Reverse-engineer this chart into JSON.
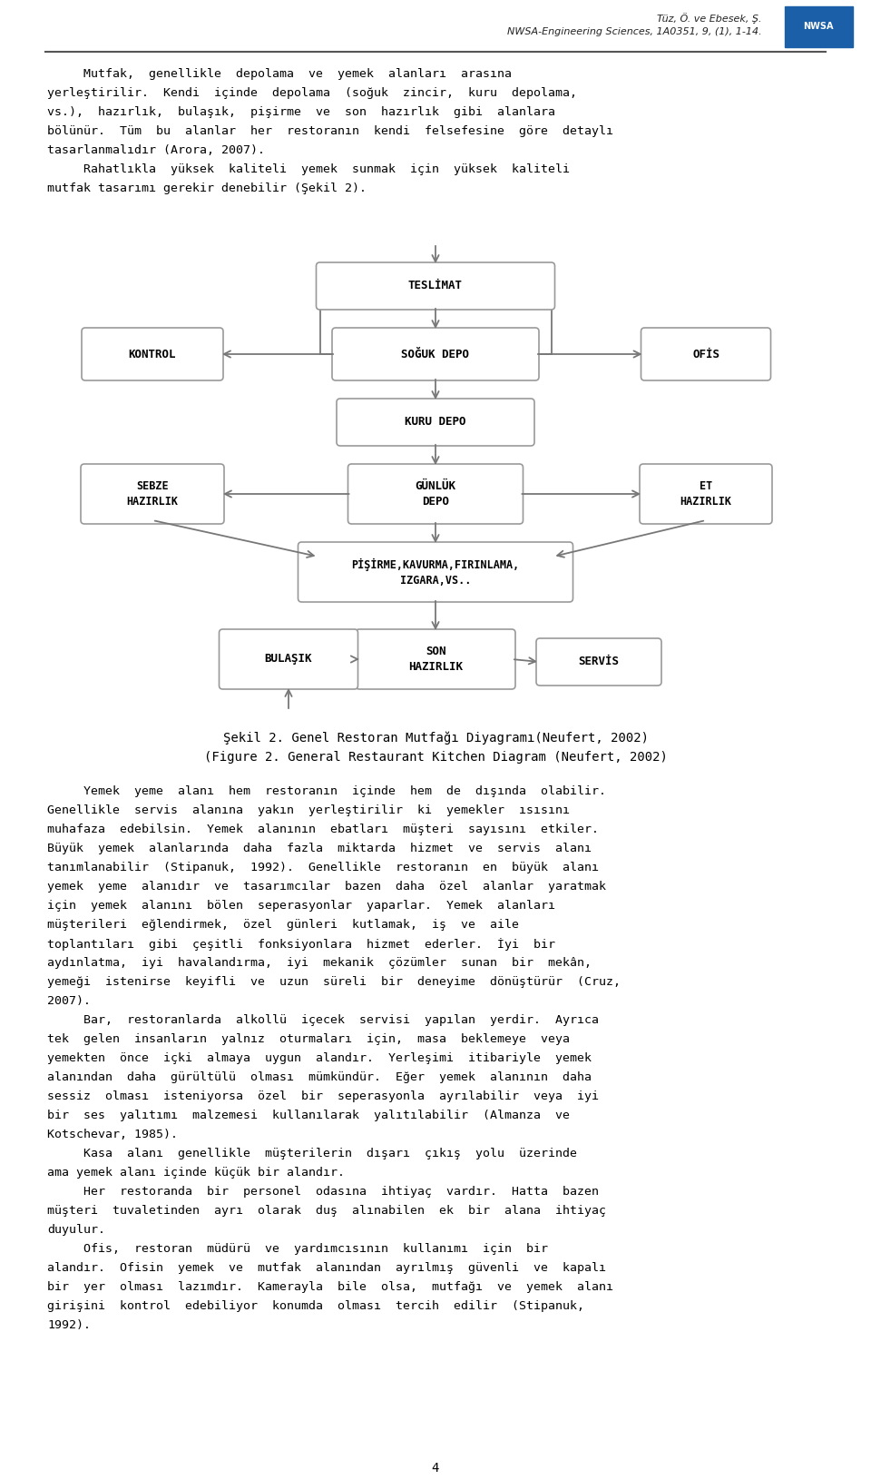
{
  "page_width": 9.6,
  "page_height": 16.3,
  "bg_color": "#ffffff",
  "header_line1": "Tüz, Ö. ve Ebesek, Ş.",
  "header_line2": "NWSA-Engineering Sciences, 1A0351, 9, (1), 1-14.",
  "body_text": [
    "     Mutfak,  genellikle  depolama  ve  yemek  alanları  arasına",
    "yerleştirilir.  Kendi  içinde  depolama  (soğuk  zincir,  kuru  depolama,",
    "vs.),  hazırlık,  bulaşık,  pişirme  ve  son  hazırlık  gibi  alanlara",
    "bölünür.  Tüm  bu  alanlar  her  restoranın  kendi  felsefesine  göre  detaylı",
    "tasarlanmalıdır (Arora, 2007).",
    "     Rahatlıkla  yüksek  kaliteli  yemek  sunmak  için  yüksek  kaliteli",
    "mutfak tasarımı gerekir denebilir (Şekil 2)."
  ],
  "caption_line1": "Şekil 2. Genel Restoran Mutfağı Diyagramı(Neufert, 2002)",
  "caption_line2": "(Figure 2. General Restaurant Kitchen Diagram (Neufert, 2002)",
  "body_text2": [
    "     Yemek  yeme  alanı  hem  restoranın  içinde  hem  de  dışında  olabilir.",
    "Genellikle  servis  alanına  yakın  yerleştirilir  ki  yemekler  ısısını",
    "muhafaza  edebilsin.  Yemek  alanının  ebatları  müşteri  sayısını  etkiler.",
    "Büyük  yemek  alanlarında  daha  fazla  miktarda  hizmet  ve  servis  alanı",
    "tanımlanabilir  (Stipanuk,  1992).  Genellikle  restoranın  en  büyük  alanı",
    "yemek  yeme  alanıdır  ve  tasarımcılar  bazen  daha  özel  alanlar  yaratmak",
    "için  yemek  alanını  bölen  seperasyonlar  yaparlar.  Yemek  alanları",
    "müşterileri  eğlendirmek,  özel  günleri  kutlamak,  iş  ve  aile",
    "toplantıları  gibi  çeşitli  fonksiyonlara  hizmet  ederler.  İyi  bir",
    "aydınlatma,  iyi  havalandırma,  iyi  mekanik  çözümler  sunan  bir  mekân,",
    "yemeği  istenirse  keyifli  ve  uzun  süreli  bir  deneyime  dönüştürür  (Cruz,",
    "2007).",
    "     Bar,  restoranlarda  alkollü  içecek  servisi  yapılan  yerdir.  Ayrıca",
    "tek  gelen  insanların  yalnız  oturmaları  için,  masa  beklemeye  veya",
    "yemekten  önce  içki  almaya  uygun  alandır.  Yerleşimi  itibariyle  yemek",
    "alanından  daha  gürültülü  olması  mümkündür.  Eğer  yemek  alanının  daha",
    "sessiz  olması  isteniyorsa  özel  bir  seperasyonla  ayrılabilir  veya  iyi",
    "bir  ses  yalıtımı  malzemesi  kullanılarak  yalıtılabilir  (Almanza  ve",
    "Kotschevar, 1985).",
    "     Kasa  alanı  genellikle  müşterilerin  dışarı  çıkış  yolu  üzerinde",
    "ama yemek alanı içinde küçük bir alandır.",
    "     Her  restoranda  bir  personel  odasına  ihtiyaç  vardır.  Hatta  bazen",
    "müşteri  tuvaletinden  ayrı  olarak  duş  alınabilen  ek  bir  alana  ihtiyaç",
    "duyulur.",
    "     Ofis,  restoran  müdürü  ve  yardımcısının  kullanımı  için  bir",
    "alandır.  Ofisin  yemek  ve  mutfak  alanından  ayrılmış  güvenli  ve  kapalı",
    "bir  yer  olması  lazımdır.  Kamerayla  bile  olsa,  mutfağı  ve  yemek  alanı",
    "girişini  kontrol  edebiliyor  konumda  olması  tercih  edilir  (Stipanuk,",
    "1992)."
  ],
  "page_number": "4",
  "box_color": "#ffffff",
  "box_border_color": "#999999",
  "arrow_color": "#777777",
  "text_color": "#000000"
}
